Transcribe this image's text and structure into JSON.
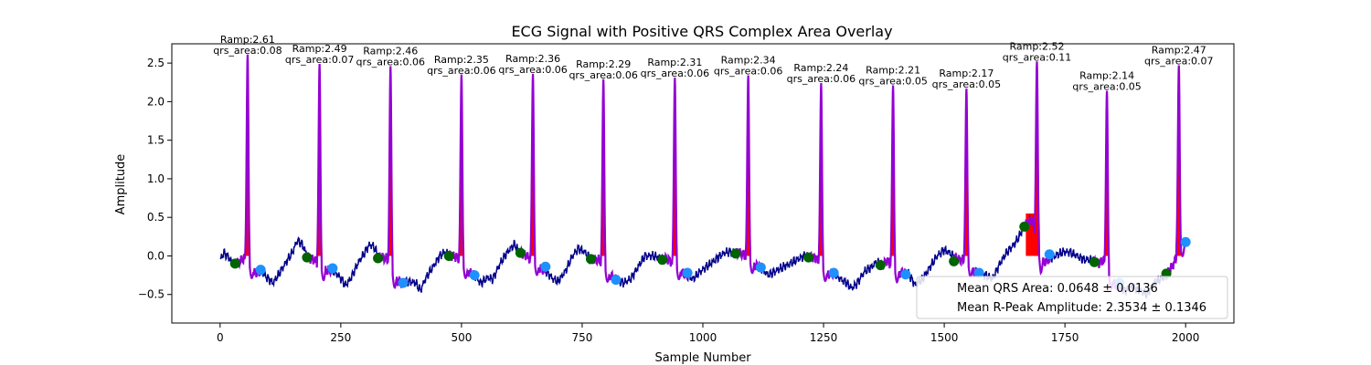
{
  "chart_data": {
    "type": "line",
    "title": "ECG Signal with Positive QRS Complex Area Overlay",
    "xlabel": "Sample Number",
    "ylabel": "Amplitude",
    "xlim": [
      -100,
      2100
    ],
    "ylim": [
      -0.87,
      2.75
    ],
    "xticks": [
      0,
      250,
      500,
      750,
      1000,
      1250,
      1500,
      1750,
      2000
    ],
    "yticks": [
      -0.5,
      0.0,
      0.5,
      1.0,
      1.5,
      2.0,
      2.5
    ],
    "xtick_labels": [
      "0",
      "250",
      "500",
      "750",
      "1000",
      "1250",
      "1500",
      "1750",
      "2000"
    ],
    "ytick_labels": [
      "−0.5",
      "0.0",
      "0.5",
      "1.0",
      "1.5",
      "2.0",
      "2.5"
    ],
    "grid": false,
    "legend_position": "lower-right",
    "colors": {
      "signal": "#00008b",
      "qrs_segment": "#9400d3",
      "qrs_area": "#ff0000",
      "q_point": "#006400",
      "s_point": "#1e90ff"
    },
    "signal": {
      "n_samples": 2000,
      "baseline_points": [
        [
          0,
          -0.05
        ],
        [
          8,
          0.04
        ],
        [
          18,
          -0.02
        ],
        [
          30,
          -0.12
        ],
        [
          45,
          -0.05
        ],
        [
          52,
          -0.02
        ],
        [
          70,
          -0.22
        ],
        [
          85,
          -0.2
        ],
        [
          100,
          -0.3
        ],
        [
          110,
          -0.35
        ],
        [
          120,
          -0.25
        ],
        [
          135,
          -0.1
        ],
        [
          150,
          0.05
        ],
        [
          160,
          0.2
        ],
        [
          170,
          0.15
        ],
        [
          182,
          -0.02
        ],
        [
          195,
          -0.05
        ],
        [
          215,
          -0.2
        ],
        [
          230,
          -0.18
        ],
        [
          245,
          -0.25
        ],
        [
          260,
          -0.38
        ],
        [
          270,
          -0.3
        ],
        [
          285,
          -0.1
        ],
        [
          300,
          0.05
        ],
        [
          310,
          0.15
        ],
        [
          318,
          0.12
        ],
        [
          330,
          -0.02
        ],
        [
          345,
          -0.03
        ],
        [
          362,
          -0.3
        ],
        [
          375,
          -0.35
        ],
        [
          392,
          -0.33
        ],
        [
          405,
          -0.35
        ],
        [
          415,
          -0.45
        ],
        [
          425,
          -0.3
        ],
        [
          440,
          -0.15
        ],
        [
          455,
          0.0
        ],
        [
          465,
          0.05
        ],
        [
          480,
          0.0
        ],
        [
          492,
          -0.02
        ],
        [
          512,
          -0.2
        ],
        [
          525,
          -0.25
        ],
        [
          540,
          -0.35
        ],
        [
          555,
          -0.28
        ],
        [
          565,
          -0.3
        ],
        [
          580,
          -0.1
        ],
        [
          595,
          0.05
        ],
        [
          610,
          0.15
        ],
        [
          620,
          0.05
        ],
        [
          635,
          0.0
        ],
        [
          660,
          -0.15
        ],
        [
          675,
          -0.2
        ],
        [
          690,
          -0.3
        ],
        [
          700,
          -0.33
        ],
        [
          715,
          -0.2
        ],
        [
          730,
          0.0
        ],
        [
          742,
          0.1
        ],
        [
          755,
          0.05
        ],
        [
          770,
          -0.05
        ],
        [
          785,
          -0.05
        ],
        [
          806,
          -0.25
        ],
        [
          820,
          -0.3
        ],
        [
          835,
          -0.35
        ],
        [
          850,
          -0.3
        ],
        [
          865,
          -0.15
        ],
        [
          880,
          0.0
        ],
        [
          895,
          0.0
        ],
        [
          910,
          -0.02
        ],
        [
          930,
          -0.05
        ],
        [
          953,
          -0.2
        ],
        [
          965,
          -0.25
        ],
        [
          980,
          -0.3
        ],
        [
          992,
          -0.22
        ],
        [
          1005,
          -0.15
        ],
        [
          1020,
          -0.08
        ],
        [
          1035,
          0.0
        ],
        [
          1048,
          0.05
        ],
        [
          1065,
          0.05
        ],
        [
          1082,
          0.03
        ],
        [
          1105,
          -0.12
        ],
        [
          1120,
          -0.15
        ],
        [
          1135,
          -0.25
        ],
        [
          1150,
          -0.2
        ],
        [
          1165,
          -0.15
        ],
        [
          1180,
          -0.1
        ],
        [
          1195,
          -0.05
        ],
        [
          1210,
          0.0
        ],
        [
          1225,
          -0.02
        ],
        [
          1235,
          -0.03
        ],
        [
          1258,
          -0.25
        ],
        [
          1270,
          -0.22
        ],
        [
          1285,
          -0.3
        ],
        [
          1298,
          -0.35
        ],
        [
          1308,
          -0.42
        ],
        [
          1320,
          -0.35
        ],
        [
          1335,
          -0.2
        ],
        [
          1348,
          -0.15
        ],
        [
          1360,
          -0.08
        ],
        [
          1372,
          -0.12
        ],
        [
          1382,
          -0.06
        ],
        [
          1402,
          -0.22
        ],
        [
          1415,
          -0.22
        ],
        [
          1425,
          -0.22
        ],
        [
          1440,
          -0.38
        ],
        [
          1455,
          -0.3
        ],
        [
          1470,
          -0.15
        ],
        [
          1485,
          0.0
        ],
        [
          1500,
          0.08
        ],
        [
          1515,
          0.02
        ],
        [
          1530,
          -0.05
        ],
        [
          1542,
          -0.05
        ],
        [
          1560,
          -0.2
        ],
        [
          1572,
          -0.22
        ],
        [
          1585,
          -0.25
        ],
        [
          1600,
          -0.3
        ],
        [
          1615,
          -0.1
        ],
        [
          1630,
          0.05
        ],
        [
          1645,
          0.15
        ],
        [
          1655,
          0.25
        ],
        [
          1665,
          0.38
        ],
        [
          1675,
          0.45
        ],
        [
          1685,
          0.45
        ],
        [
          1700,
          -0.1
        ],
        [
          1715,
          -0.05
        ],
        [
          1730,
          0.0
        ],
        [
          1745,
          0.05
        ],
        [
          1760,
          0.05
        ],
        [
          1775,
          0.0
        ],
        [
          1790,
          -0.05
        ],
        [
          1805,
          -0.05
        ],
        [
          1820,
          -0.1
        ],
        [
          1830,
          -0.05
        ],
        [
          1848,
          -0.35
        ],
        [
          1860,
          -0.4
        ],
        [
          1875,
          -0.45
        ],
        [
          1890,
          -0.4
        ],
        [
          1905,
          -0.45
        ],
        [
          1920,
          -0.5
        ],
        [
          1935,
          -0.35
        ],
        [
          1948,
          -0.3
        ],
        [
          1960,
          -0.25
        ],
        [
          1975,
          -0.1
        ],
        [
          1992,
          0.1
        ],
        [
          2000,
          0.18
        ]
      ]
    },
    "beats": [
      {
        "r_x": 57,
        "r_amp": 2.61,
        "q": [
          31,
          -0.1
        ],
        "s": [
          84,
          -0.18
        ],
        "label_r": "Ramp:2.61",
        "label_area": "qrs_area:0.08"
      },
      {
        "r_x": 206,
        "r_amp": 2.49,
        "q": [
          180,
          -0.02
        ],
        "s": [
          233,
          -0.16
        ],
        "label_r": "Ramp:2.49",
        "label_area": "qrs_area:0.07"
      },
      {
        "r_x": 353,
        "r_amp": 2.46,
        "q": [
          327,
          -0.03
        ],
        "s": [
          379,
          -0.35
        ],
        "label_r": "Ramp:2.46",
        "label_area": "qrs_area:0.06"
      },
      {
        "r_x": 500,
        "r_amp": 2.35,
        "q": [
          474,
          0.0
        ],
        "s": [
          527,
          -0.25
        ],
        "label_r": "Ramp:2.35",
        "label_area": "qrs_area:0.06"
      },
      {
        "r_x": 648,
        "r_amp": 2.36,
        "q": [
          622,
          0.04
        ],
        "s": [
          674,
          -0.14
        ],
        "label_r": "Ramp:2.36",
        "label_area": "qrs_area:0.06"
      },
      {
        "r_x": 794,
        "r_amp": 2.29,
        "q": [
          768,
          -0.04
        ],
        "s": [
          820,
          -0.31
        ],
        "label_r": "Ramp:2.29",
        "label_area": "qrs_area:0.06"
      },
      {
        "r_x": 942,
        "r_amp": 2.31,
        "q": [
          916,
          -0.05
        ],
        "s": [
          968,
          -0.22
        ],
        "label_r": "Ramp:2.31",
        "label_area": "qrs_area:0.06"
      },
      {
        "r_x": 1094,
        "r_amp": 2.34,
        "q": [
          1068,
          0.03
        ],
        "s": [
          1120,
          -0.15
        ],
        "label_r": "Ramp:2.34",
        "label_area": "qrs_area:0.06"
      },
      {
        "r_x": 1245,
        "r_amp": 2.24,
        "q": [
          1219,
          -0.02
        ],
        "s": [
          1271,
          -0.22
        ],
        "label_r": "Ramp:2.24",
        "label_area": "qrs_area:0.06"
      },
      {
        "r_x": 1394,
        "r_amp": 2.21,
        "q": [
          1368,
          -0.12
        ],
        "s": [
          1420,
          -0.24
        ],
        "label_r": "Ramp:2.21",
        "label_area": "qrs_area:0.05"
      },
      {
        "r_x": 1546,
        "r_amp": 2.17,
        "q": [
          1520,
          -0.07
        ],
        "s": [
          1572,
          -0.22
        ],
        "label_r": "Ramp:2.17",
        "label_area": "qrs_area:0.05"
      },
      {
        "r_x": 1692,
        "r_amp": 2.52,
        "q": [
          1666,
          0.38
        ],
        "s": [
          1718,
          0.02
        ],
        "label_r": "Ramp:2.52",
        "label_area": "qrs_area:0.11"
      },
      {
        "r_x": 1837,
        "r_amp": 2.14,
        "q": [
          1811,
          -0.08
        ],
        "s": [
          1863,
          -0.35
        ],
        "label_r": "Ramp:2.14",
        "label_area": "qrs_area:0.05"
      },
      {
        "r_x": 1986,
        "r_amp": 2.47,
        "q": [
          1960,
          -0.23
        ],
        "s": [
          2000,
          0.18
        ],
        "label_r": "Ramp:2.47",
        "label_area": "qrs_area:0.07"
      }
    ],
    "legend_entries": [
      "Mean QRS Area: 0.0648 ± 0.0136",
      "Mean R-Peak Amplitude: 2.3534 ± 0.1346"
    ]
  }
}
